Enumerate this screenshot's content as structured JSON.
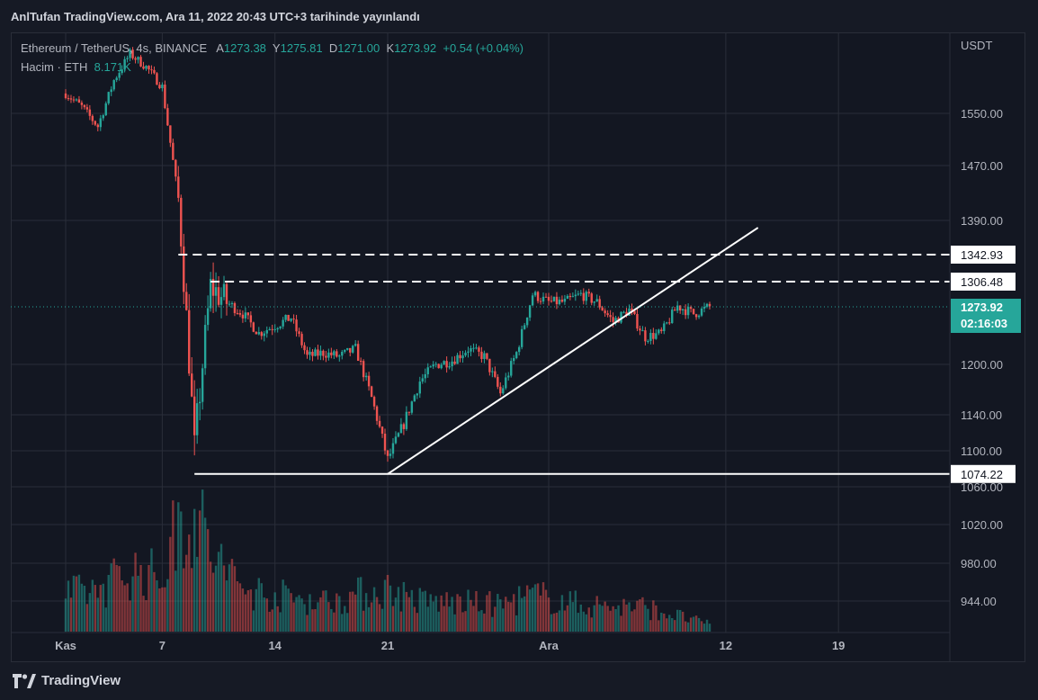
{
  "header": {
    "publish_line": "AnlTufan TradingView.com, Ara 11, 2022 20:43 UTC+3 tarihinde yayınlandı"
  },
  "legend": {
    "symbol": "Ethereum / TetherUS, 4s, BINANCE",
    "open_label": "A",
    "open": "1273.38",
    "high_label": "Y",
    "high": "1275.81",
    "low_label": "D",
    "low": "1271.00",
    "close_label": "K",
    "close": "1273.92",
    "change": "+0.54 (+0.04%)",
    "volume_label": "Hacim · ETH",
    "volume": "8.171K"
  },
  "footer": {
    "brand": "TradingView"
  },
  "colors": {
    "up": "#26a69a",
    "down": "#ef5350",
    "background": "#131722",
    "grid": "#2a2e39",
    "current": "#26a69a",
    "lines": "#ffffff"
  },
  "chart_data": {
    "type": "candlestick",
    "symbol": "Ethereum / TetherUS",
    "timeframe": "4s",
    "exchange": "BINANCE",
    "currency": "USDT",
    "y_ticks": [
      1550.0,
      1470.0,
      1390.0,
      1200.0,
      1140.0,
      1100.0,
      1060.0,
      1020.0,
      980.0,
      944.0
    ],
    "x_ticks": [
      "Kas",
      "7",
      "14",
      "21",
      "Ara",
      "12",
      "19"
    ],
    "current_price": "1273.92",
    "countdown": "02:16:03",
    "price_lines": [
      {
        "value": "1342.93",
        "style": "dashed"
      },
      {
        "value": "1306.48",
        "style": "dashed"
      },
      {
        "value": "1074.22",
        "style": "solid"
      }
    ],
    "trendline": {
      "from_date": "2022-11-21",
      "from_price": 1074.22,
      "to_date": "2022-12-14",
      "to_price": 1380
    },
    "price_path": [
      {
        "d": "2022-11-01",
        "p": 1580
      },
      {
        "d": "2022-11-02",
        "p": 1560
      },
      {
        "d": "2022-11-03",
        "p": 1530
      },
      {
        "d": "2022-11-04",
        "p": 1600
      },
      {
        "d": "2022-11-05",
        "p": 1640
      },
      {
        "d": "2022-11-06",
        "p": 1620
      },
      {
        "d": "2022-11-07",
        "p": 1590
      },
      {
        "d": "2022-11-08",
        "p": 1420
      },
      {
        "d": "2022-11-09",
        "p": 1100
      },
      {
        "d": "2022-11-10",
        "p": 1300
      },
      {
        "d": "2022-11-11",
        "p": 1280
      },
      {
        "d": "2022-11-12",
        "p": 1265
      },
      {
        "d": "2022-11-13",
        "p": 1240
      },
      {
        "d": "2022-11-14",
        "p": 1250
      },
      {
        "d": "2022-11-15",
        "p": 1260
      },
      {
        "d": "2022-11-16",
        "p": 1210
      },
      {
        "d": "2022-11-17",
        "p": 1215
      },
      {
        "d": "2022-11-18",
        "p": 1210
      },
      {
        "d": "2022-11-19",
        "p": 1220
      },
      {
        "d": "2022-11-20",
        "p": 1160
      },
      {
        "d": "2022-11-21",
        "p": 1090
      },
      {
        "d": "2022-11-22",
        "p": 1130
      },
      {
        "d": "2022-11-23",
        "p": 1180
      },
      {
        "d": "2022-11-24",
        "p": 1200
      },
      {
        "d": "2022-11-25",
        "p": 1205
      },
      {
        "d": "2022-11-26",
        "p": 1220
      },
      {
        "d": "2022-11-27",
        "p": 1210
      },
      {
        "d": "2022-11-28",
        "p": 1165
      },
      {
        "d": "2022-11-29",
        "p": 1215
      },
      {
        "d": "2022-11-30",
        "p": 1290
      },
      {
        "d": "2022-12-01",
        "p": 1280
      },
      {
        "d": "2022-12-02",
        "p": 1280
      },
      {
        "d": "2022-12-03",
        "p": 1290
      },
      {
        "d": "2022-12-04",
        "p": 1280
      },
      {
        "d": "2022-12-05",
        "p": 1255
      },
      {
        "d": "2022-12-06",
        "p": 1270
      },
      {
        "d": "2022-12-07",
        "p": 1235
      },
      {
        "d": "2022-12-08",
        "p": 1240
      },
      {
        "d": "2022-12-09",
        "p": 1275
      },
      {
        "d": "2022-12-10",
        "p": 1265
      },
      {
        "d": "2022-12-11",
        "p": 1274
      }
    ],
    "volume_path": [
      {
        "d": "2022-11-01",
        "v": 0.3
      },
      {
        "d": "2022-11-03",
        "v": 0.35
      },
      {
        "d": "2022-11-05",
        "v": 0.5
      },
      {
        "d": "2022-11-07",
        "v": 0.45
      },
      {
        "d": "2022-11-08",
        "v": 0.9
      },
      {
        "d": "2022-11-09",
        "v": 1.0
      },
      {
        "d": "2022-11-10",
        "v": 0.65
      },
      {
        "d": "2022-11-12",
        "v": 0.35
      },
      {
        "d": "2022-11-14",
        "v": 0.3
      },
      {
        "d": "2022-11-17",
        "v": 0.25
      },
      {
        "d": "2022-11-21",
        "v": 0.35
      },
      {
        "d": "2022-11-23",
        "v": 0.25
      },
      {
        "d": "2022-11-28",
        "v": 0.22
      },
      {
        "d": "2022-11-30",
        "v": 0.3
      },
      {
        "d": "2022-12-03",
        "v": 0.22
      },
      {
        "d": "2022-12-07",
        "v": 0.2
      },
      {
        "d": "2022-12-11",
        "v": 0.06
      }
    ]
  }
}
